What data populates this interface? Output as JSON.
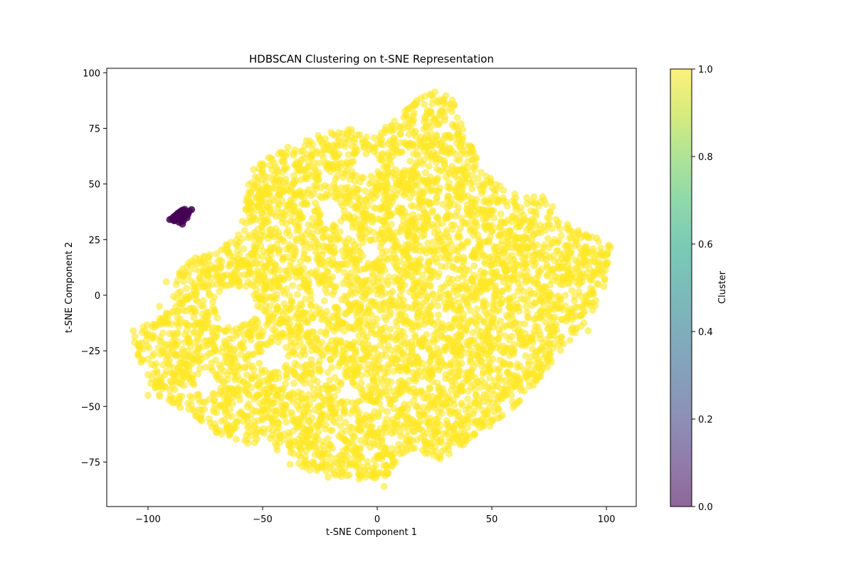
{
  "chart_data": {
    "type": "scatter",
    "title": "HDBSCAN Clustering on t-SNE Representation",
    "xlabel": "t-SNE Component 1",
    "ylabel": "t-SNE Component 2",
    "xlim": [
      -118,
      113
    ],
    "ylim": [
      -95,
      102
    ],
    "xticks": [
      -100,
      -50,
      0,
      50,
      100
    ],
    "xtick_labels": [
      "−100",
      "−50",
      "0",
      "50",
      "100"
    ],
    "yticks": [
      -75,
      -50,
      -25,
      0,
      25,
      50,
      75,
      100
    ],
    "ytick_labels": [
      "−75",
      "−50",
      "−25",
      "0",
      "25",
      "50",
      "75",
      "100"
    ],
    "grid": false,
    "colormap": "viridis",
    "colorbar": {
      "label": "Cluster",
      "range": [
        0.0,
        1.0
      ],
      "ticks": [
        0.0,
        0.2,
        0.4,
        0.6,
        0.8,
        1.0
      ],
      "tick_labels": [
        "0.0",
        "0.2",
        "0.4",
        "0.6",
        "0.8",
        "1.0"
      ]
    },
    "marker_alpha": 0.6,
    "series": [
      {
        "cluster": 0,
        "color": "#440154",
        "x": [
          -90.5,
          -89.5,
          -88.8,
          -88.0,
          -87.5,
          -87.0,
          -86.5,
          -86.0,
          -85.5,
          -85.0,
          -84.5,
          -84.0,
          -83.5,
          -83.0,
          -82.5,
          -82.0,
          -81.0,
          -89.0,
          -88.0,
          -87.0,
          -86.0,
          -85.0,
          -84.0,
          -83.0,
          -86.5,
          -85.5,
          -84.5,
          -85.0,
          -87.5,
          -83.5,
          -86.0,
          -88.5,
          -84.0,
          -85.8
        ],
        "y": [
          34.0,
          34.5,
          35.2,
          35.8,
          36.2,
          36.8,
          37.0,
          37.5,
          37.8,
          38.2,
          38.0,
          37.6,
          37.2,
          36.8,
          36.5,
          37.8,
          38.5,
          33.8,
          34.0,
          34.4,
          35.0,
          35.5,
          35.2,
          34.8,
          32.8,
          33.2,
          33.6,
          32.0,
          35.5,
          36.0,
          36.0,
          33.5,
          38.6,
          34.5
        ]
      },
      {
        "cluster": 1,
        "color": "#fde725",
        "x_range": [
          -107,
          102
        ],
        "y_range": [
          -86,
          93
        ],
        "note_points": "dense cloud of several thousand points spanning this range"
      }
    ]
  }
}
